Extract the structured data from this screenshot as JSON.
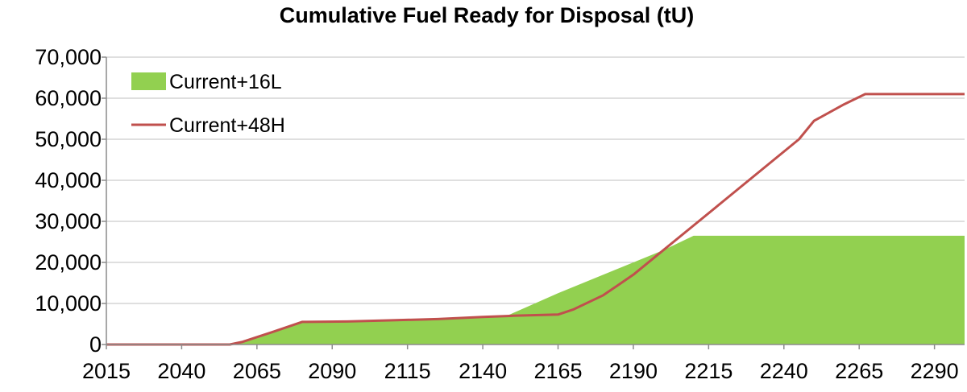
{
  "chart_data": {
    "type": "area",
    "title": "Cumulative Fuel Ready for Disposal (tU)",
    "xlabel": "",
    "ylabel": "",
    "xlim": [
      2015,
      2300
    ],
    "ylim": [
      0,
      70000
    ],
    "x_ticks": [
      2015,
      2040,
      2065,
      2090,
      2115,
      2140,
      2165,
      2190,
      2215,
      2240,
      2265,
      2290
    ],
    "y_ticks": [
      0,
      10000,
      20000,
      30000,
      40000,
      50000,
      60000,
      70000
    ],
    "y_tick_labels": [
      "0",
      "10,000",
      "20,000",
      "30,000",
      "40,000",
      "50,000",
      "60,000",
      "70,000"
    ],
    "grid": true,
    "legend_position": "top-left",
    "series": [
      {
        "name": "Current+16L",
        "kind": "area",
        "color": "#92d050",
        "points": [
          [
            2015,
            0
          ],
          [
            2056,
            0
          ],
          [
            2060,
            600
          ],
          [
            2065,
            1800
          ],
          [
            2070,
            3000
          ],
          [
            2076,
            4500
          ],
          [
            2080,
            5500
          ],
          [
            2095,
            5600
          ],
          [
            2110,
            5900
          ],
          [
            2125,
            6200
          ],
          [
            2140,
            6700
          ],
          [
            2148,
            7000
          ],
          [
            2165,
            12500
          ],
          [
            2185,
            18500
          ],
          [
            2200,
            23000
          ],
          [
            2210,
            26500
          ],
          [
            2300,
            26500
          ]
        ]
      },
      {
        "name": "Current+48H",
        "kind": "line",
        "color": "#c0504d",
        "points": [
          [
            2015,
            0
          ],
          [
            2056,
            0
          ],
          [
            2060,
            600
          ],
          [
            2065,
            1800
          ],
          [
            2070,
            3000
          ],
          [
            2076,
            4500
          ],
          [
            2080,
            5500
          ],
          [
            2095,
            5600
          ],
          [
            2110,
            5900
          ],
          [
            2125,
            6200
          ],
          [
            2140,
            6700
          ],
          [
            2150,
            7000
          ],
          [
            2165,
            7300
          ],
          [
            2170,
            8500
          ],
          [
            2180,
            12000
          ],
          [
            2190,
            17000
          ],
          [
            2200,
            23000
          ],
          [
            2210,
            29000
          ],
          [
            2220,
            35000
          ],
          [
            2235,
            44000
          ],
          [
            2245,
            50000
          ],
          [
            2250,
            54500
          ],
          [
            2260,
            58500
          ],
          [
            2267,
            61000
          ],
          [
            2300,
            61000
          ]
        ]
      }
    ]
  }
}
